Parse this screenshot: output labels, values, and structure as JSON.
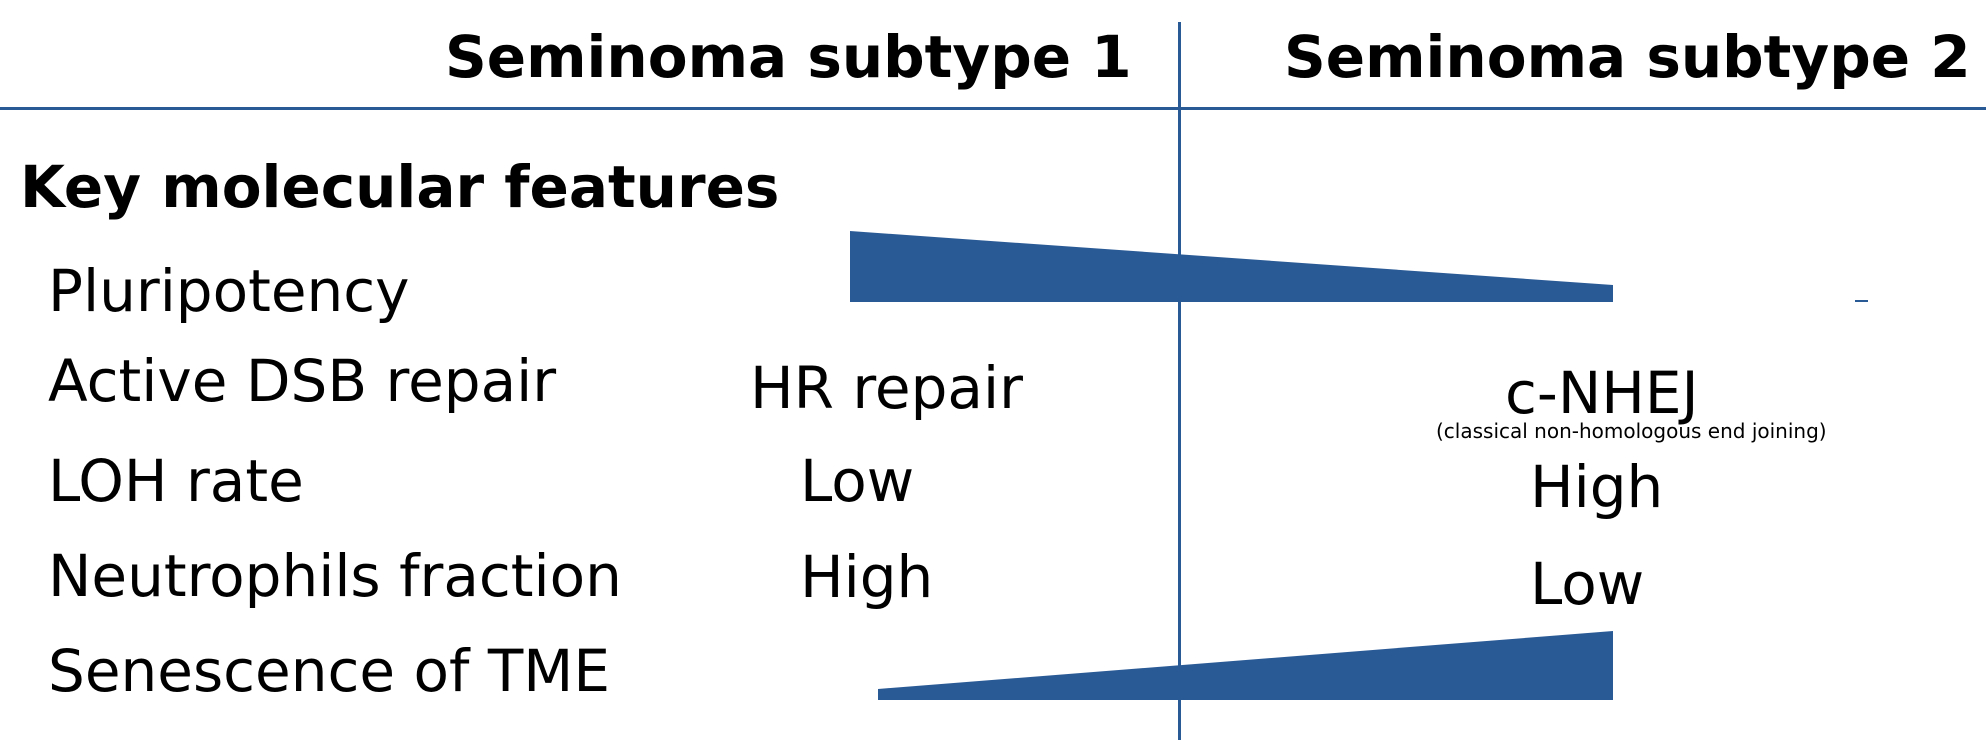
{
  "headers": {
    "subtype1": "Seminoma subtype 1",
    "subtype2": "Seminoma subtype 2"
  },
  "section_title": "Key molecular features",
  "rows": {
    "pluripotency": {
      "label": "Pluripotency",
      "trend": "decreasing from subtype 1 to subtype 2"
    },
    "dsb_repair": {
      "label": "Active DSB repair",
      "subtype1": "HR repair",
      "subtype2": "c-NHEJ",
      "subtype2_note": "(classical non-homologous end joining)"
    },
    "loh_rate": {
      "label": "LOH rate",
      "subtype1": "Low",
      "subtype2": "High"
    },
    "neutrophils": {
      "label": "Neutrophils fraction",
      "subtype1": "High",
      "subtype2": "Low"
    },
    "senescence": {
      "label": "Senescence of TME",
      "trend": "increasing from subtype 1 to subtype 2"
    }
  },
  "colors": {
    "accent": "#2a5a96",
    "text": "#000000",
    "background": "#ffffff"
  }
}
